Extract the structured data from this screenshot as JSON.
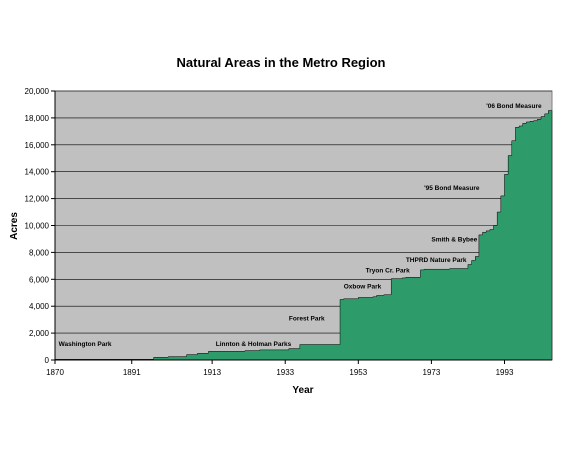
{
  "chart_data": {
    "type": "area",
    "title": "Natural Areas in the Metro Region",
    "xlabel": "Year",
    "ylabel": "Acres",
    "xlim": [
      1870,
      2006
    ],
    "ylim": [
      0,
      20000
    ],
    "x_ticks": [
      "1870",
      "1891",
      "1913",
      "1933",
      "1953",
      "1973",
      "1993"
    ],
    "y_ticks": [
      "0",
      "2,000",
      "4,000",
      "6,000",
      "8,000",
      "10,000",
      "12,000",
      "14,000",
      "16,000",
      "18,000",
      "20,000"
    ],
    "grid": true,
    "legend": "none",
    "colors": {
      "fill": "#2E9C6A",
      "plot_bg": "#C0C0C0",
      "grid": "#000000"
    },
    "series": [
      {
        "x": [
          1870,
          1897,
          1897,
          1901,
          1901,
          1906,
          1906,
          1909,
          1909,
          1912,
          1912,
          1922,
          1922,
          1926,
          1926,
          1934,
          1934,
          1937,
          1937,
          1948,
          1948,
          1949,
          1949,
          1953,
          1953,
          1957,
          1957,
          1958,
          1958,
          1960,
          1960,
          1962,
          1962,
          1965,
          1965,
          1966,
          1966,
          1970,
          1970,
          1971,
          1971,
          1978,
          1978,
          1983,
          1983,
          1984,
          1984,
          1985,
          1985,
          1986,
          1986,
          1987,
          1987,
          1988,
          1988,
          1989,
          1989,
          1990,
          1990,
          1991,
          1991,
          1992,
          1992,
          1993,
          1993,
          1994,
          1994,
          1995,
          1995,
          1996,
          1996,
          1997,
          1997,
          1998,
          1998,
          1999,
          1999,
          2000,
          2000,
          2001,
          2001,
          2002,
          2002,
          2003,
          2003,
          2004,
          2004,
          2005,
          2005,
          2006
        ],
        "values": [
          50,
          50,
          200,
          200,
          250,
          250,
          400,
          400,
          500,
          500,
          650,
          650,
          700,
          700,
          750,
          750,
          850,
          850,
          1150,
          1150,
          4500,
          4500,
          4550,
          4550,
          4650,
          4650,
          4700,
          4700,
          4800,
          4800,
          4850,
          4850,
          6050,
          6050,
          6100,
          6100,
          6150,
          6150,
          6700,
          6700,
          6750,
          6750,
          6800,
          6800,
          7100,
          7100,
          7400,
          7400,
          7700,
          7700,
          9300,
          9300,
          9500,
          9500,
          9600,
          9600,
          9700,
          9700,
          10000,
          10000,
          11000,
          11000,
          12200,
          12200,
          13800,
          13800,
          15200,
          15200,
          16300,
          16300,
          17300,
          17300,
          17400,
          17400,
          17600,
          17600,
          17700,
          17700,
          17750,
          17750,
          17800,
          17800,
          17900,
          17900,
          18100,
          18100,
          18300,
          18300,
          18550,
          18550
        ]
      }
    ],
    "annotations": [
      {
        "text": "Washington Park",
        "x": 1871,
        "y": 1050
      },
      {
        "text": "Linnton & Holman Parks",
        "x": 1914,
        "y": 1050
      },
      {
        "text": "Forest Park",
        "x": 1934,
        "y": 2950
      },
      {
        "text": "Oxbow Park",
        "x": 1949,
        "y": 5300
      },
      {
        "text": "Tryon Cr. Park",
        "x": 1955,
        "y": 6500
      },
      {
        "text": "THPRD Nature Park",
        "x": 1966,
        "y": 7300
      },
      {
        "text": "Smith & Bybee",
        "x": 1973,
        "y": 8800
      },
      {
        "text": "'95 Bond Measure",
        "x": 1971,
        "y": 12650
      },
      {
        "text": "'06 Bond Measure",
        "x": 1988,
        "y": 18750
      }
    ]
  }
}
